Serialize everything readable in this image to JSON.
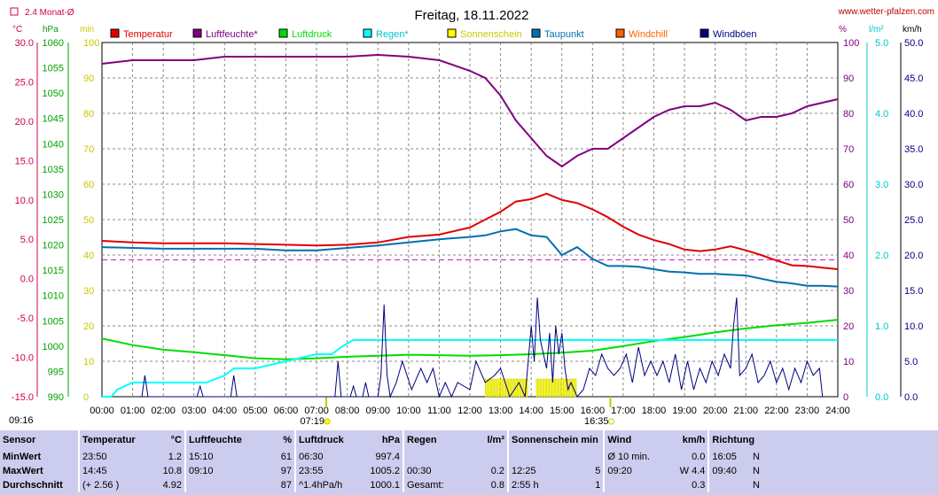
{
  "site": "www.wetter-pfalzen.com",
  "chart_data": {
    "type": "line",
    "title": "Freitag, 18.11.2022",
    "x_ticks": [
      "00:00",
      "01:00",
      "02:00",
      "03:00",
      "04:00",
      "05:00",
      "06:00",
      "07:00",
      "08:00",
      "09:00",
      "10:00",
      "11:00",
      "12:00",
      "13:00",
      "14:00",
      "15:00",
      "16:00",
      "17:00",
      "18:00",
      "19:00",
      "20:00",
      "21:00",
      "22:00",
      "23:00",
      "24:00"
    ],
    "sunrise": "07:19",
    "sunset": "16:35",
    "monthly_avg_label": "2.4 Monat-Ø",
    "monthly_avg_temp": 2.4,
    "axes": {
      "temp": {
        "unit": "°C",
        "min": -15,
        "max": 30,
        "ticks": [
          "30.0",
          "25.0",
          "20.0",
          "15.0",
          "10.0",
          "5.0",
          "0.0",
          "-5.0",
          "-10.0",
          "-15.0"
        ],
        "color": "#d00050"
      },
      "pressure": {
        "unit": "hPa",
        "min": 990,
        "max": 1060,
        "ticks": [
          "1060",
          "1055",
          "1050",
          "1045",
          "1040",
          "1035",
          "1030",
          "1025",
          "1020",
          "1015",
          "1010",
          "1005",
          "1000",
          "995",
          "990"
        ],
        "color": "#00a000"
      },
      "sunshine": {
        "unit": "min",
        "min": 0,
        "max": 100,
        "ticks": [
          "100",
          "90",
          "80",
          "70",
          "60",
          "50",
          "40",
          "30",
          "20",
          "10",
          "0"
        ],
        "color": "#c8c800"
      },
      "humidity": {
        "unit": "%",
        "min": 0,
        "max": 100,
        "ticks": [
          "100",
          "90",
          "80",
          "70",
          "60",
          "50",
          "40",
          "30",
          "20",
          "10",
          "0"
        ],
        "color": "#800080"
      },
      "rain": {
        "unit": "l/m²",
        "min": 0,
        "max": 5,
        "ticks": [
          "5.0",
          "4.0",
          "3.0",
          "2.0",
          "1.0",
          "0.0"
        ],
        "color": "#00c8c8"
      },
      "wind": {
        "unit": "km/h",
        "min": 0,
        "max": 50,
        "ticks": [
          "50.0",
          "45.0",
          "40.0",
          "35.0",
          "30.0",
          "25.0",
          "20.0",
          "15.0",
          "10.0",
          "5.0",
          "0.0"
        ],
        "color": "#000080"
      }
    },
    "legend": [
      {
        "name": "Temperatur",
        "color": "#e00000"
      },
      {
        "name": "Luftfeuchte*",
        "color": "#800080"
      },
      {
        "name": "Luftdruck",
        "color": "#00dd00"
      },
      {
        "name": "Regen*",
        "color": "#00ffff"
      },
      {
        "name": "Sonnenschein",
        "color": "#ffff00"
      },
      {
        "name": "Taupunkt",
        "color": "#0070b0"
      },
      {
        "name": "Windchill",
        "color": "#ff6000"
      },
      {
        "name": "Windböen",
        "color": "#000080"
      }
    ],
    "series": [
      {
        "name": "Temperatur",
        "axis": "temp",
        "color": "#e00000",
        "x": [
          0,
          1,
          2,
          3,
          4,
          5,
          6,
          7,
          8,
          9,
          10,
          11,
          12,
          12.5,
          13,
          13.5,
          14,
          14.5,
          15,
          15.5,
          16,
          16.5,
          17,
          17.5,
          18,
          18.5,
          19,
          19.5,
          20,
          20.5,
          21,
          21.5,
          22,
          22.5,
          23,
          23.5,
          24
        ],
        "y": [
          4.8,
          4.6,
          4.5,
          4.5,
          4.5,
          4.4,
          4.3,
          4.2,
          4.3,
          4.6,
          5.3,
          5.6,
          6.5,
          7.5,
          8.5,
          9.8,
          10.1,
          10.8,
          10.0,
          9.6,
          8.8,
          7.8,
          6.6,
          5.6,
          4.9,
          4.4,
          3.7,
          3.5,
          3.7,
          4.1,
          3.6,
          3.0,
          2.3,
          1.7,
          1.6,
          1.4,
          1.2
        ]
      },
      {
        "name": "Luftfeuchte",
        "axis": "humidity",
        "color": "#800080",
        "x": [
          0,
          1,
          3,
          4,
          5,
          6,
          7,
          8,
          9,
          10,
          11,
          12,
          12.5,
          13,
          13.5,
          14,
          14.5,
          15,
          15.5,
          16,
          16.5,
          17,
          17.5,
          18,
          18.5,
          19,
          19.5,
          20,
          20.5,
          21,
          21.5,
          22,
          22.5,
          23,
          23.5,
          24
        ],
        "y": [
          94,
          95,
          95,
          96,
          96,
          96,
          96,
          96,
          96.5,
          96,
          95,
          92,
          90,
          85,
          78,
          73,
          68,
          65,
          68,
          70,
          70,
          73,
          76,
          79,
          81,
          82,
          82,
          83,
          81,
          78,
          79,
          79,
          80,
          82,
          83,
          84
        ]
      },
      {
        "name": "Luftdruck",
        "axis": "pressure",
        "color": "#00dd00",
        "x": [
          0,
          1,
          2,
          3,
          4,
          5,
          6,
          7,
          8,
          9,
          10,
          11,
          12,
          13,
          14,
          15,
          16,
          17,
          18,
          19,
          20,
          21,
          22,
          23,
          24
        ],
        "y": [
          1001.5,
          1000.2,
          999.3,
          998.8,
          998.2,
          997.6,
          997.4,
          997.6,
          997.9,
          998.1,
          998.3,
          998.2,
          998.1,
          998.2,
          998.4,
          998.7,
          999.1,
          1000.0,
          1001.0,
          1001.8,
          1002.7,
          1003.5,
          1004.1,
          1004.6,
          1005.2
        ]
      },
      {
        "name": "Regen",
        "axis": "rain",
        "color": "#00ffff",
        "x": [
          0,
          0.3,
          0.5,
          1,
          2,
          3,
          3.4,
          4,
          4.3,
          5,
          6,
          6.5,
          7,
          7.5,
          7.8,
          8.2,
          8.5,
          9,
          10,
          12,
          14,
          16,
          18,
          20,
          22,
          24
        ],
        "y": [
          0,
          0,
          0.1,
          0.2,
          0.2,
          0.2,
          0.2,
          0.3,
          0.4,
          0.4,
          0.5,
          0.55,
          0.6,
          0.6,
          0.7,
          0.8,
          0.8,
          0.8,
          0.8,
          0.8,
          0.8,
          0.8,
          0.8,
          0.8,
          0.8,
          0.8
        ]
      },
      {
        "name": "Taupunkt",
        "axis": "temp",
        "color": "#0070b0",
        "x": [
          0,
          1,
          2,
          3,
          4,
          5,
          6,
          7,
          8,
          9,
          10,
          11,
          12,
          12.5,
          13,
          13.5,
          14,
          14.5,
          15,
          15.5,
          16,
          16.5,
          17,
          17.5,
          18,
          18.5,
          19,
          19.5,
          20,
          20.5,
          21,
          21.5,
          22,
          22.5,
          23,
          23.5,
          24
        ],
        "y": [
          4.0,
          3.9,
          3.8,
          3.8,
          3.8,
          3.8,
          3.6,
          3.6,
          3.9,
          4.2,
          4.6,
          5.0,
          5.3,
          5.5,
          6.0,
          6.3,
          5.5,
          5.3,
          3.0,
          4.0,
          2.5,
          1.6,
          1.6,
          1.5,
          1.2,
          0.9,
          0.8,
          0.6,
          0.6,
          0.5,
          0.4,
          0.0,
          -0.4,
          -0.6,
          -0.9,
          -0.9,
          -1.0
        ]
      },
      {
        "name": "Windböen",
        "axis": "wind",
        "color": "#000080",
        "x": [
          1.3,
          1.4,
          1.5,
          3.1,
          3.2,
          3.3,
          4.2,
          4.3,
          4.4,
          7.6,
          7.7,
          7.8,
          8.1,
          8.2,
          8.3,
          8.5,
          8.6,
          8.7,
          9.0,
          9.1,
          9.2,
          9.3,
          9.4,
          9.6,
          9.8,
          10.1,
          10.4,
          10.6,
          10.8,
          11.0,
          11.2,
          11.4,
          11.6,
          12.0,
          12.2,
          12.5,
          12.8,
          13.0,
          13.3,
          13.6,
          13.8,
          14.0,
          14.1,
          14.2,
          14.3,
          14.5,
          14.6,
          14.7,
          14.8,
          14.9,
          15.0,
          15.1,
          15.2,
          15.3,
          15.5,
          15.7,
          15.9,
          16.1,
          16.3,
          16.5,
          16.7,
          16.9,
          17.1,
          17.3,
          17.5,
          17.7,
          17.9,
          18.1,
          18.3,
          18.5,
          18.7,
          18.9,
          19.1,
          19.3,
          19.5,
          19.7,
          19.9,
          20.1,
          20.3,
          20.5,
          20.6,
          20.7,
          20.8,
          21.0,
          21.2,
          21.4,
          21.6,
          21.8,
          22.0,
          22.2,
          22.4,
          22.6,
          22.8,
          23.0,
          23.2,
          23.4,
          23.5
        ],
        "y": [
          0,
          3,
          0,
          0,
          1.5,
          0,
          0,
          3,
          0,
          0,
          5,
          0,
          0,
          1.5,
          0,
          0,
          2,
          0,
          0,
          3,
          13,
          3,
          0,
          2,
          5,
          1,
          4,
          2,
          4,
          0,
          2,
          0,
          2,
          1,
          5,
          2,
          3,
          4,
          0,
          2,
          0,
          10,
          5,
          14,
          8,
          4,
          9,
          2,
          10,
          6,
          9,
          4,
          1,
          2,
          0,
          1,
          4,
          3,
          6,
          4,
          3,
          4,
          6,
          2,
          7,
          3,
          5,
          3,
          5,
          2,
          6,
          1,
          5,
          1,
          4,
          2,
          5,
          3,
          6,
          4,
          10,
          14,
          3,
          4,
          6,
          2,
          3,
          5,
          2,
          4,
          1,
          4,
          2,
          5,
          3,
          4,
          0
        ]
      }
    ],
    "sunshine_blocks": {
      "start": 12.5,
      "end": 15.5,
      "gaps": [
        [
          13.9,
          14.1
        ]
      ],
      "minutes_max": 5
    }
  },
  "stats": {
    "headers": {
      "sensor": "Sensor",
      "temp": "Temperatur",
      "temp_unit": "°C",
      "hum": "Luftfeuchte",
      "hum_unit": "%",
      "press": "Luftdruck",
      "press_unit": "hPa",
      "rain": "Regen",
      "rain_unit": "l/m²",
      "sun": "Sonnenschein min",
      "wind": "Wind",
      "wind_unit": "km/h",
      "dir": "Richtung"
    },
    "rows": [
      {
        "label": "MinWert",
        "temp_t": "23:50",
        "temp_v": "1.2",
        "hum_t": "15:10",
        "hum_v": "61",
        "press_t": "06:30",
        "press_v": "997.4",
        "rain_t": "",
        "rain_v": "",
        "sun_t": "",
        "sun_v": "",
        "wind_t": "Ø 10 min.",
        "wind_v": "0.0",
        "dir_t": "16:05",
        "dir_v": "N"
      },
      {
        "label": "MaxWert",
        "temp_t": "14:45",
        "temp_v": "10.8",
        "hum_t": "09:10",
        "hum_v": "97",
        "press_t": "23:55",
        "press_v": "1005.2",
        "rain_t": "00:30",
        "rain_v": "0.2",
        "sun_t": "12:25",
        "sun_v": "5",
        "wind_t": "09:20",
        "wind_v": "W 4.4",
        "dir_t": "09:40",
        "dir_v": "N"
      },
      {
        "label": "Durchschnitt",
        "temp_t": "(+ 2.56 )",
        "temp_v": "4.92",
        "hum_t": "",
        "hum_v": "87",
        "press_t": "^1.4hPa/h",
        "press_v": "1000.1",
        "rain_t": "Gesamt:",
        "rain_v": "0.8",
        "sun_t": "2:55 h",
        "sun_v": "1",
        "wind_t": "",
        "wind_v": "0.3",
        "dir_t": "",
        "dir_v": "N"
      }
    ]
  }
}
